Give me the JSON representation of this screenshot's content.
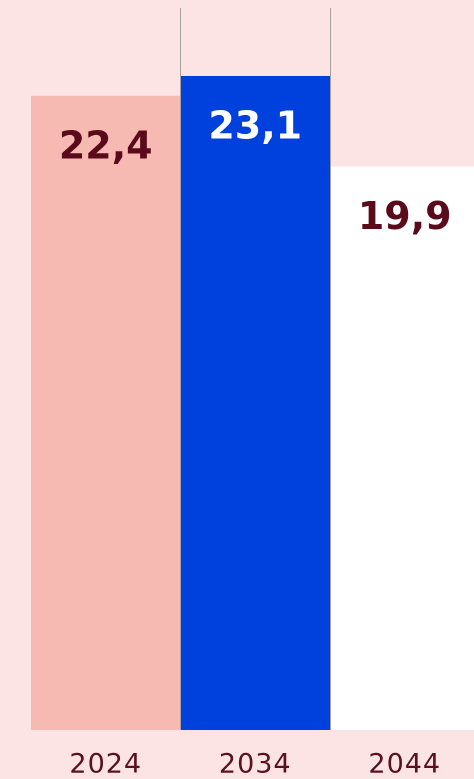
{
  "chart_data": {
    "type": "bar",
    "categories": [
      "2024",
      "2034",
      "2044"
    ],
    "values": [
      22.4,
      23.1,
      19.9
    ],
    "value_labels": [
      "22,4",
      "23,1",
      "19,9"
    ],
    "colors": [
      "#f7bab3",
      "#0040dd",
      "#ffffff"
    ],
    "label_colors": [
      "#5a0a1a",
      "#ffffff",
      "#5a0a1a"
    ],
    "ylim": [
      0,
      24
    ]
  }
}
